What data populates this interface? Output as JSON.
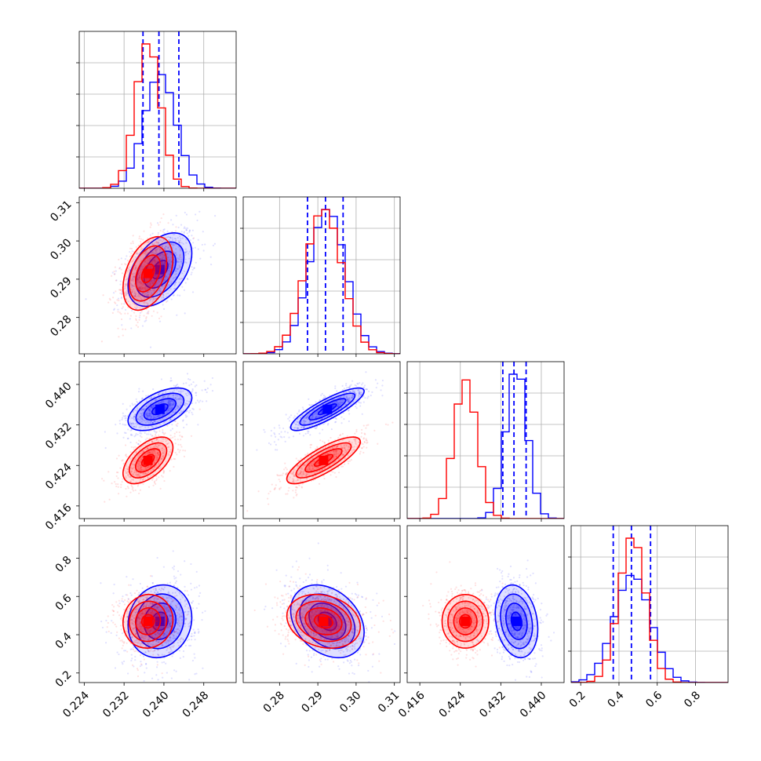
{
  "chart_data": {
    "type": "corner",
    "grid": true,
    "colors": {
      "blue": "#0000ff",
      "red": "#ff0000"
    },
    "series": [
      {
        "color": "#0000ff",
        "mean": [
          0.2392,
          0.2925,
          0.4351,
          0.47
        ],
        "sd": [
          0.0032,
          0.0048,
          0.0021,
          0.095
        ],
        "quantile_lines": [
          [
            0.2358,
            0.239,
            0.243
          ],
          [
            0.2873,
            0.292,
            0.2966
          ],
          [
            0.4324,
            0.4346,
            0.437
          ],
          [
            0.37,
            0.465,
            0.565
          ]
        ],
        "show_quantiles": true
      },
      {
        "color": "#ff0000",
        "mean": [
          0.2368,
          0.2915,
          0.425,
          0.47
        ],
        "sd": [
          0.0025,
          0.0048,
          0.0023,
          0.07
        ],
        "show_quantiles": false
      }
    ],
    "correlations": {
      "0-1": {
        "blue": 0.45,
        "red": 0.4
      },
      "0-2": {
        "blue": 0.55,
        "red": 0.55
      },
      "1-2": {
        "blue": 0.85,
        "red": 0.8
      },
      "0-3": {
        "blue": 0.1,
        "red": 0.05
      },
      "1-3": {
        "blue": -0.3,
        "red": -0.2
      },
      "2-3": {
        "blue": -0.2,
        "red": 0.0
      }
    },
    "ranges": [
      [
        0.223,
        0.2545
      ],
      [
        0.2705,
        0.3115
      ],
      [
        0.4135,
        0.4445
      ],
      [
        0.15,
        0.97
      ]
    ],
    "ticks": [
      {
        "values": [
          0.224,
          0.232,
          0.24,
          0.248
        ],
        "labels": [
          "0.224",
          "0.232",
          "0.240",
          "0.248"
        ]
      },
      {
        "values": [
          0.28,
          0.29,
          0.3,
          0.31
        ],
        "labels": [
          "0.28",
          "0.29",
          "0.30",
          "0.31"
        ]
      },
      {
        "values": [
          0.416,
          0.424,
          0.432,
          0.44
        ],
        "labels": [
          "0.416",
          "0.424",
          "0.432",
          "0.440"
        ]
      },
      {
        "values": [
          0.2,
          0.4,
          0.6,
          0.8
        ],
        "labels": [
          "0.2",
          "0.4",
          "0.6",
          "0.8"
        ]
      }
    ],
    "hist_hline_fractions": [
      0.2,
      0.4,
      0.6,
      0.8
    ]
  }
}
